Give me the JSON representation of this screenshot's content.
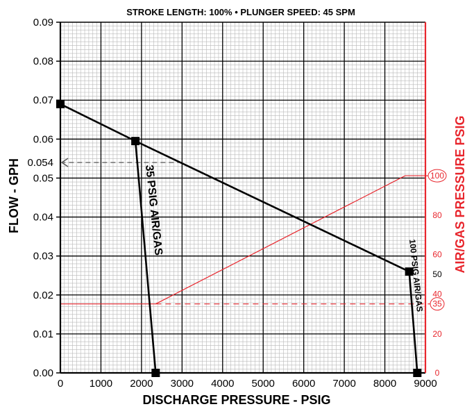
{
  "chart_data": {
    "type": "line",
    "title": "STROKE LENGTH: 100% • PLUNGER SPEED: 45 SPM",
    "xlabel": "DISCHARGE PRESSURE - PSIG",
    "ylabel": "FLOW - GPH",
    "y2label": "AIR/GAS PRESSURE PSIG",
    "xlim": [
      0,
      9000
    ],
    "ylim": [
      0,
      0.09
    ],
    "grid": true,
    "x_ticks": [
      "0",
      "1000",
      "2000",
      "3000",
      "4000",
      "5000",
      "6000",
      "7000",
      "8000",
      "9000"
    ],
    "y_ticks": [
      "0.00",
      "0.01",
      "0.02",
      "0.03",
      "0.04",
      "0.05",
      "0.06",
      "0.07",
      "0.08",
      "0.09"
    ],
    "y_marker_label": "0.054",
    "y2_ticks": [
      {
        "label": "0",
        "flow": 0.0,
        "color": "#e8262d"
      },
      {
        "label": "20",
        "flow": 0.01,
        "color": "#e8262d"
      },
      {
        "label": "40",
        "flow": 0.0202,
        "color": "#e8262d"
      },
      {
        "label": "50",
        "flow": 0.0253,
        "color": "#000000"
      },
      {
        "label": "60",
        "flow": 0.0304,
        "color": "#e8262d"
      },
      {
        "label": "80",
        "flow": 0.0405,
        "color": "#e8262d"
      }
    ],
    "y2_circled": [
      {
        "label": "35",
        "flow": 0.0177
      },
      {
        "label": "100",
        "flow": 0.0506
      }
    ],
    "series": [
      {
        "name": "",
        "x": [
          0,
          1850,
          8600
        ],
        "y": [
          0.069,
          0.0595,
          0.026
        ],
        "color": "#000000",
        "markers": true
      },
      {
        "name": "35 PSIG AIR/GAS",
        "x": [
          1850,
          2350
        ],
        "y": [
          0.0595,
          0.0
        ],
        "color": "#000000",
        "markers": true
      },
      {
        "name": "100 PSIG AIR/GAS",
        "x": [
          8600,
          8800
        ],
        "y": [
          0.026,
          0.0
        ],
        "color": "#000000",
        "markers": true
      }
    ],
    "reference_lines": {
      "flow_054_from_x": 3000,
      "flow_054": 0.054,
      "air_35_flow": 0.0177,
      "air_100_flow": 0.0506,
      "air_rise_from_x": 2350,
      "air_rise_to_x": 8500,
      "color": "#e8262d"
    }
  }
}
